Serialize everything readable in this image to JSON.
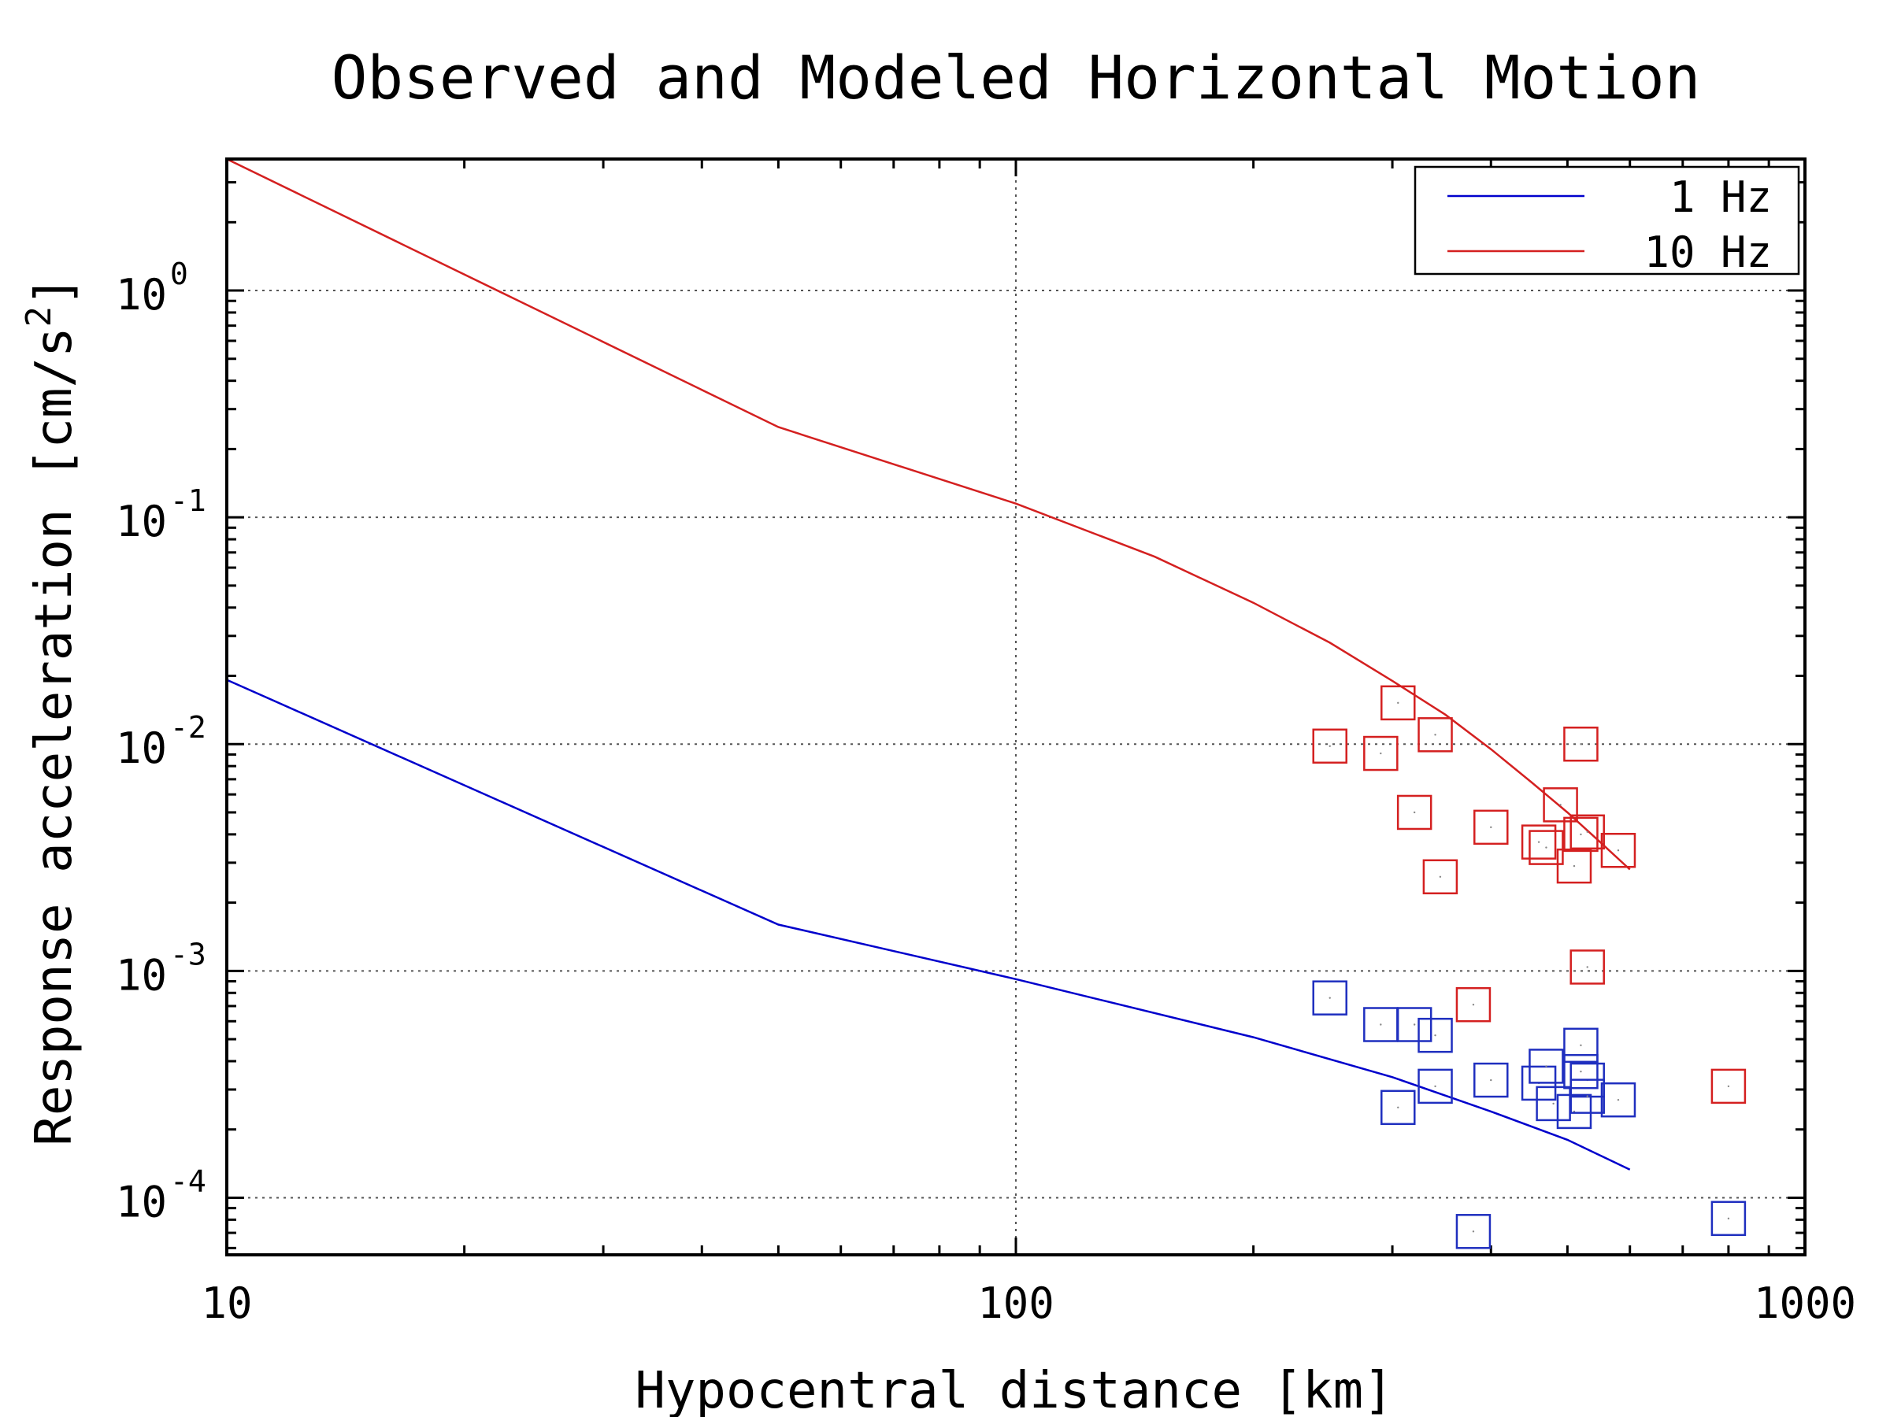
{
  "chart_data": {
    "type": "scatter",
    "title": "Observed and Modeled Horizontal Motion",
    "xlabel": "Hypocentral distance [km]",
    "ylabel": "Response acceleration [cm/s²]",
    "ylabel_parts": [
      "Response acceleration [cm/s",
      "2",
      "]"
    ],
    "xscale": "log",
    "yscale": "log",
    "xlim": [
      10,
      1000
    ],
    "ylim": [
      5.6e-05,
      3.8
    ],
    "grid": true,
    "legend_position": "top-right",
    "x_ticks": [
      {
        "value": 10,
        "label": "10"
      },
      {
        "value": 100,
        "label": "100"
      },
      {
        "value": 1000,
        "label": "1000"
      }
    ],
    "y_ticks": [
      {
        "value": 1,
        "base": "10",
        "exp": "0"
      },
      {
        "value": 0.1,
        "base": "10",
        "exp": "-1"
      },
      {
        "value": 0.01,
        "base": "10",
        "exp": "-2"
      },
      {
        "value": 0.001,
        "base": "10",
        "exp": "-3"
      },
      {
        "value": 0.0001,
        "base": "10",
        "exp": "-4"
      }
    ],
    "lines": [
      {
        "name": "1 Hz",
        "color": "#0000cc",
        "x": [
          10,
          50,
          100,
          200,
          300,
          400,
          500,
          600
        ],
        "y": [
          0.0192,
          0.0016,
          0.00092,
          0.00051,
          0.00034,
          0.00024,
          0.00018,
          0.000133
        ]
      },
      {
        "name": "10 Hz",
        "color": "#d42020",
        "x": [
          10,
          50,
          100,
          150,
          200,
          250,
          300,
          350,
          400,
          450,
          500,
          550,
          600
        ],
        "y": [
          3.8,
          0.25,
          0.115,
          0.067,
          0.042,
          0.028,
          0.019,
          0.0135,
          0.0095,
          0.0068,
          0.005,
          0.0037,
          0.0028
        ]
      }
    ],
    "series": [
      {
        "name": "10 Hz observed",
        "color": "#d42020",
        "marker": "square",
        "points": [
          {
            "x": 250,
            "y": 0.0098
          },
          {
            "x": 290,
            "y": 0.0091
          },
          {
            "x": 305,
            "y": 0.0152
          },
          {
            "x": 340,
            "y": 0.011
          },
          {
            "x": 320,
            "y": 0.005
          },
          {
            "x": 345,
            "y": 0.0026
          },
          {
            "x": 380,
            "y": 0.00071
          },
          {
            "x": 400,
            "y": 0.0043
          },
          {
            "x": 460,
            "y": 0.0037
          },
          {
            "x": 470,
            "y": 0.0035
          },
          {
            "x": 490,
            "y": 0.0054
          },
          {
            "x": 510,
            "y": 0.0029
          },
          {
            "x": 520,
            "y": 0.004
          },
          {
            "x": 530,
            "y": 0.0041
          },
          {
            "x": 520,
            "y": 0.01
          },
          {
            "x": 530,
            "y": 0.00104
          },
          {
            "x": 580,
            "y": 0.0034
          },
          {
            "x": 800,
            "y": 0.00031
          }
        ]
      },
      {
        "name": "1 Hz observed",
        "color": "#1f2fbf",
        "marker": "square",
        "points": [
          {
            "x": 250,
            "y": 0.00076
          },
          {
            "x": 290,
            "y": 0.00058
          },
          {
            "x": 305,
            "y": 0.00025
          },
          {
            "x": 320,
            "y": 0.00058
          },
          {
            "x": 340,
            "y": 0.00052
          },
          {
            "x": 340,
            "y": 0.00031
          },
          {
            "x": 380,
            "y": 7.1e-05
          },
          {
            "x": 400,
            "y": 0.00033
          },
          {
            "x": 460,
            "y": 0.00032
          },
          {
            "x": 470,
            "y": 0.00038
          },
          {
            "x": 480,
            "y": 0.00026
          },
          {
            "x": 510,
            "y": 0.00024
          },
          {
            "x": 520,
            "y": 0.00047
          },
          {
            "x": 520,
            "y": 0.00036
          },
          {
            "x": 530,
            "y": 0.00033
          },
          {
            "x": 530,
            "y": 0.00028
          },
          {
            "x": 580,
            "y": 0.00027
          },
          {
            "x": 800,
            "y": 8.1e-05
          }
        ]
      }
    ],
    "legend": [
      {
        "label": "1 Hz",
        "color": "#0000cc"
      },
      {
        "label": "10 Hz",
        "color": "#d42020"
      }
    ]
  }
}
